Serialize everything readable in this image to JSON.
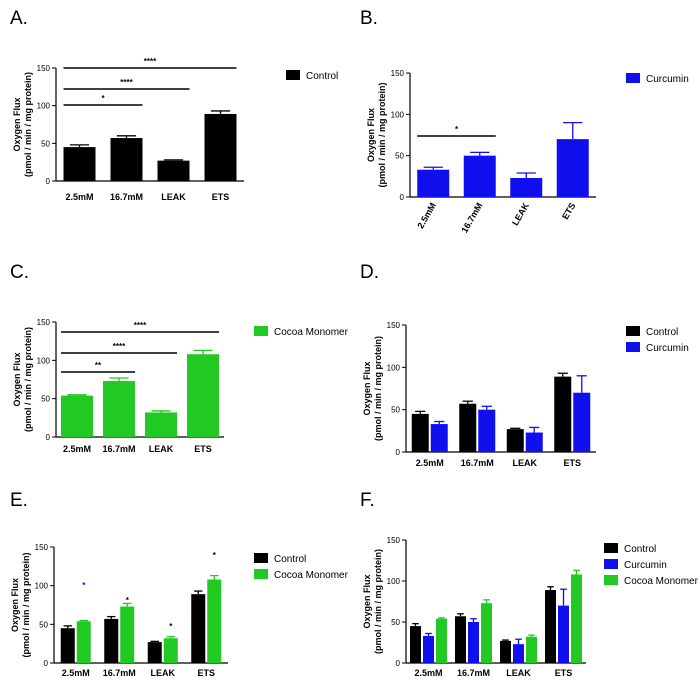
{
  "figure": {
    "colors": {
      "Control": "#000000",
      "Curcumin": "#1010ee",
      "Cocoa Monomer": "#22c922"
    },
    "panels": [
      {
        "letter": "A.",
        "ylabel": [
          "Oxygen Flux",
          "(pmol / min / mg protein)"
        ],
        "yticks": [
          "0",
          "50",
          "100",
          "150"
        ],
        "legend": [
          "Control"
        ],
        "rotated_labels": false
      },
      {
        "letter": "B.",
        "ylabel": [
          "Oxygen Flux",
          "(pmol / min / mg protein)"
        ],
        "yticks": [
          "0",
          "50",
          "100",
          "150"
        ],
        "legend": [
          "Curcumin"
        ],
        "rotated_labels": true
      },
      {
        "letter": "C.",
        "ylabel": [
          "Oxygen Flux",
          "(pmol / min / mg protein)"
        ],
        "yticks": [
          "0",
          "50",
          "100",
          "150"
        ],
        "legend": [
          "Cocoa Monomer"
        ],
        "rotated_labels": false
      },
      {
        "letter": "D.",
        "ylabel": [
          "Oxygen Flux",
          "(pmol / min / mg protein)"
        ],
        "yticks": [
          "0",
          "50",
          "100",
          "150"
        ],
        "legend": [
          "Control",
          "Curcumin"
        ],
        "rotated_labels": false
      },
      {
        "letter": "E.",
        "ylabel": [
          "Oxygen Flux",
          "(pmol / min / mg protein)"
        ],
        "yticks": [
          "0",
          "50",
          "100",
          "150"
        ],
        "legend": [
          "Control",
          "Cocoa Monomer"
        ],
        "rotated_labels": false
      },
      {
        "letter": "F.",
        "ylabel": [
          "Oxygen Flux",
          "(pmol / min / mg protein)"
        ],
        "yticks": [
          "0",
          "50",
          "100",
          "150"
        ],
        "legend": [
          "Control",
          "Curcumin",
          "Cocoa Monomer"
        ],
        "rotated_labels": false
      }
    ]
  },
  "chart_data": [
    {
      "panel": "A",
      "type": "bar",
      "categories": [
        "2.5mM",
        "16.7mM",
        "LEAK",
        "ETS"
      ],
      "series": [
        {
          "name": "Control",
          "values": [
            45,
            57,
            27,
            89
          ],
          "errors": [
            3,
            3,
            1,
            4
          ]
        }
      ],
      "ylabel": "Oxygen Flux (pmol / min / mg protein)",
      "ylim": [
        0,
        150
      ],
      "legend": "top-right",
      "significance": [
        {
          "from": "2.5mM",
          "to": "16.7mM",
          "label": "*"
        },
        {
          "from": "2.5mM",
          "to": "LEAK",
          "label": "****"
        },
        {
          "from": "2.5mM",
          "to": "ETS",
          "label": "****"
        }
      ]
    },
    {
      "panel": "B",
      "type": "bar",
      "categories": [
        "2.5mM",
        "16.7mM",
        "LEAK",
        "ETS"
      ],
      "series": [
        {
          "name": "Curcumin",
          "values": [
            33,
            50,
            23,
            70
          ],
          "errors": [
            3,
            4,
            6,
            20
          ]
        }
      ],
      "ylabel": "Oxygen Flux (pmol / min / mg protein)",
      "ylim": [
        0,
        150
      ],
      "legend": "top-right",
      "significance": [
        {
          "from": "2.5mM",
          "to": "16.7mM",
          "label": "*"
        }
      ]
    },
    {
      "panel": "C",
      "type": "bar",
      "categories": [
        "2.5mM",
        "16.7mM",
        "LEAK",
        "ETS"
      ],
      "series": [
        {
          "name": "Cocoa Monomer",
          "values": [
            54,
            73,
            32,
            108
          ],
          "errors": [
            1,
            4,
            2,
            5
          ]
        }
      ],
      "ylabel": "Oxygen Flux (pmol / min / mg protein)",
      "ylim": [
        0,
        150
      ],
      "legend": "top-right",
      "significance": [
        {
          "from": "2.5mM",
          "to": "16.7mM",
          "label": "**"
        },
        {
          "from": "2.5mM",
          "to": "LEAK",
          "label": "****"
        },
        {
          "from": "2.5mM",
          "to": "ETS",
          "label": "****"
        }
      ]
    },
    {
      "panel": "D",
      "type": "bar",
      "categories": [
        "2.5mM",
        "16.7mM",
        "LEAK",
        "ETS"
      ],
      "series": [
        {
          "name": "Control",
          "values": [
            45,
            57,
            27,
            89
          ],
          "errors": [
            3,
            3,
            1,
            4
          ]
        },
        {
          "name": "Curcumin",
          "values": [
            33,
            50,
            23,
            70
          ],
          "errors": [
            3,
            4,
            6,
            20
          ]
        }
      ],
      "ylabel": "Oxygen Flux (pmol / min / mg protein)",
      "ylim": [
        0,
        150
      ],
      "legend": "top-right"
    },
    {
      "panel": "E",
      "type": "bar",
      "categories": [
        "2.5mM",
        "16.7mM",
        "LEAK",
        "ETS"
      ],
      "series": [
        {
          "name": "Control",
          "values": [
            45,
            57,
            27,
            89
          ],
          "errors": [
            3,
            3,
            1,
            4
          ]
        },
        {
          "name": "Cocoa Monomer",
          "values": [
            54,
            73,
            32,
            108
          ],
          "errors": [
            1,
            4,
            2,
            5
          ]
        }
      ],
      "ylabel": "Oxygen Flux (pmol / min / mg protein)",
      "ylim": [
        0,
        150
      ],
      "legend": "top-right",
      "annotations": [
        "*",
        "*",
        "*",
        "*"
      ]
    },
    {
      "panel": "F",
      "type": "bar",
      "categories": [
        "2.5mM",
        "16.7mM",
        "LEAK",
        "ETS"
      ],
      "series": [
        {
          "name": "Control",
          "values": [
            45,
            57,
            27,
            89
          ],
          "errors": [
            3,
            3,
            1,
            4
          ]
        },
        {
          "name": "Curcumin",
          "values": [
            33,
            50,
            23,
            70
          ],
          "errors": [
            3,
            4,
            6,
            20
          ]
        },
        {
          "name": "Cocoa Monomer",
          "values": [
            54,
            73,
            32,
            108
          ],
          "errors": [
            1,
            4,
            2,
            5
          ]
        }
      ],
      "ylabel": "Oxygen Flux (pmol / min / mg protein)",
      "ylim": [
        0,
        150
      ],
      "legend": "top-right"
    }
  ]
}
